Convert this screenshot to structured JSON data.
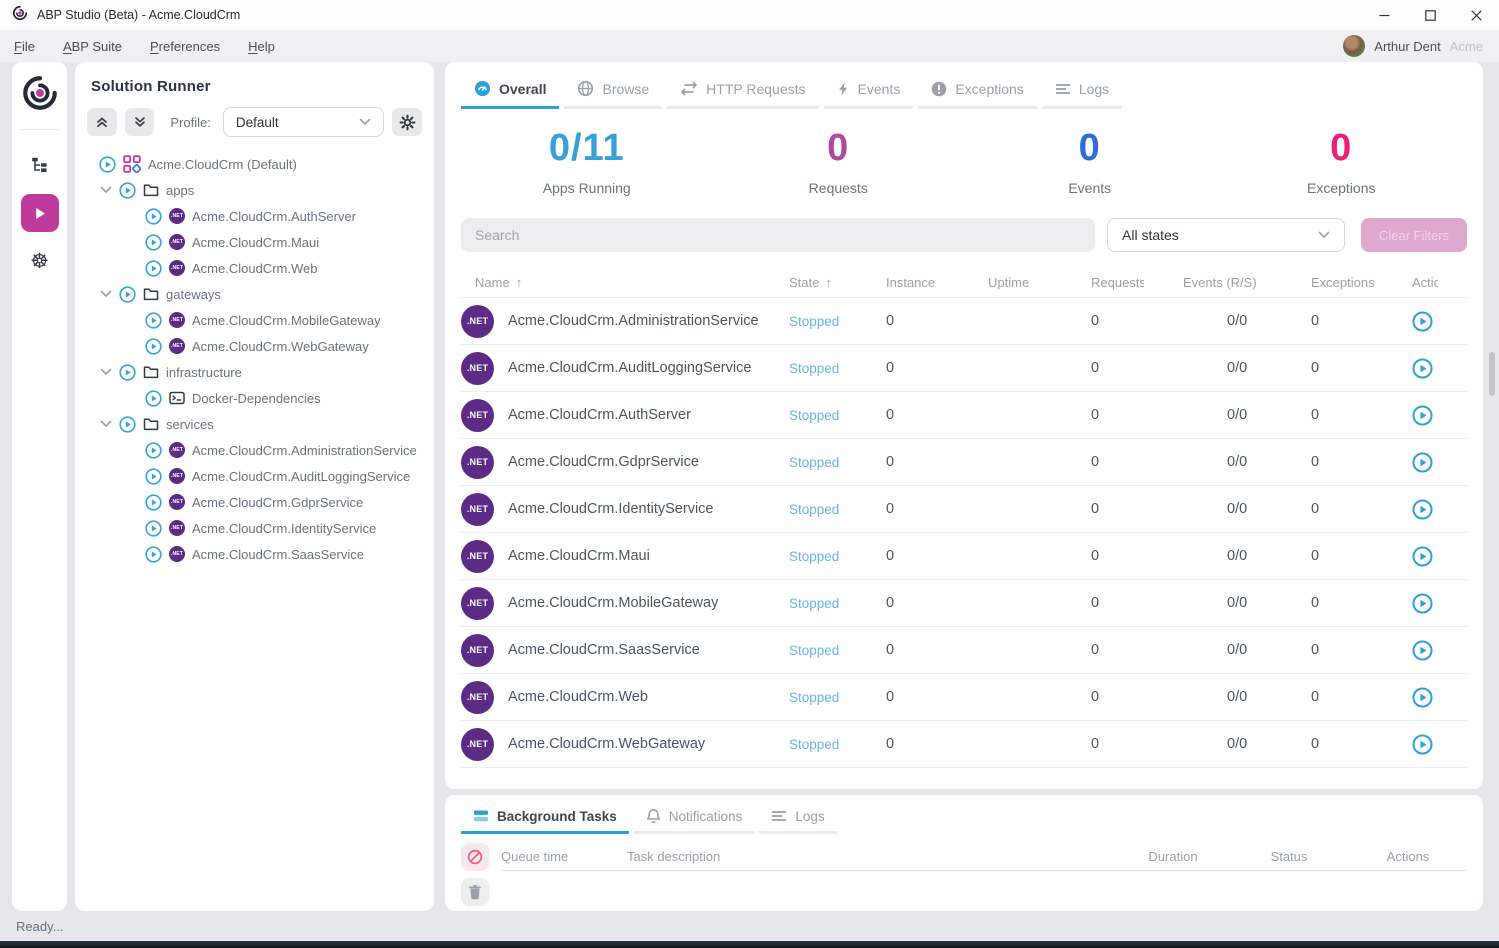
{
  "window": {
    "title": "ABP Studio (Beta) - Acme.CloudCrm"
  },
  "menu": {
    "items": [
      "File",
      "ABP Suite",
      "Preferences",
      "Help"
    ],
    "user_name": "Arthur Dent",
    "user_org": "Acme"
  },
  "rail": {
    "icons": [
      "abp-logo",
      "solution-explorer-icon",
      "solution-runner-play-icon",
      "kubernetes-icon"
    ]
  },
  "solution_runner": {
    "title": "Solution Runner",
    "profile_label": "Profile:",
    "profile_value": "Default",
    "tree": [
      {
        "depth": 0,
        "type": "solution",
        "label": "Acme.CloudCrm (Default)"
      },
      {
        "depth": 1,
        "type": "folder",
        "label": "apps"
      },
      {
        "depth": 2,
        "type": "dotnet",
        "label": "Acme.CloudCrm.AuthServer"
      },
      {
        "depth": 2,
        "type": "dotnet",
        "label": "Acme.CloudCrm.Maui"
      },
      {
        "depth": 2,
        "type": "dotnet",
        "label": "Acme.CloudCrm.Web"
      },
      {
        "depth": 1,
        "type": "folder",
        "label": "gateways"
      },
      {
        "depth": 2,
        "type": "dotnet",
        "label": "Acme.CloudCrm.MobileGateway"
      },
      {
        "depth": 2,
        "type": "dotnet",
        "label": "Acme.CloudCrm.WebGateway"
      },
      {
        "depth": 1,
        "type": "folder",
        "label": "infrastructure"
      },
      {
        "depth": 2,
        "type": "terminal",
        "label": "Docker-Dependencies"
      },
      {
        "depth": 1,
        "type": "folder",
        "label": "services"
      },
      {
        "depth": 2,
        "type": "dotnet",
        "label": "Acme.CloudCrm.AdministrationService"
      },
      {
        "depth": 2,
        "type": "dotnet",
        "label": "Acme.CloudCrm.AuditLoggingService"
      },
      {
        "depth": 2,
        "type": "dotnet",
        "label": "Acme.CloudCrm.GdprService"
      },
      {
        "depth": 2,
        "type": "dotnet",
        "label": "Acme.CloudCrm.IdentityService"
      },
      {
        "depth": 2,
        "type": "dotnet",
        "label": "Acme.CloudCrm.SaasService"
      }
    ]
  },
  "main": {
    "tabs": [
      {
        "label": "Overall",
        "icon": "gauge-icon",
        "active": true
      },
      {
        "label": "Browse",
        "icon": "globe-icon",
        "active": false
      },
      {
        "label": "HTTP Requests",
        "icon": "swap-arrows-icon",
        "active": false
      },
      {
        "label": "Events",
        "icon": "lightning-icon",
        "active": false
      },
      {
        "label": "Exceptions",
        "icon": "exclamation-circle-icon",
        "active": false
      },
      {
        "label": "Logs",
        "icon": "lines-icon",
        "active": false
      }
    ],
    "stats": [
      {
        "value": "0/11",
        "label": "Apps Running",
        "color": "#36a1d9"
      },
      {
        "value": "0",
        "label": "Requests",
        "color": "#ad4a9c"
      },
      {
        "value": "0",
        "label": "Events",
        "color": "#2f6bd9"
      },
      {
        "value": "0",
        "label": "Exceptions",
        "color": "#ec1e78"
      }
    ],
    "search_placeholder": "Search",
    "state_filter_value": "All states",
    "clear_filters_label": "Clear Filters",
    "table": {
      "columns": [
        {
          "label": "Name",
          "sorted": true
        },
        {
          "label": "State",
          "sorted": true
        },
        {
          "label": "Instance"
        },
        {
          "label": "Uptime"
        },
        {
          "label": "Requests"
        },
        {
          "label": "Events (R/S)"
        },
        {
          "label": "Exceptions"
        },
        {
          "label": "Actions"
        }
      ],
      "rows": [
        {
          "name": "Acme.CloudCrm.AdministrationService",
          "state": "Stopped",
          "instance": "0",
          "uptime": "",
          "requests": "0",
          "events": "0/0",
          "exceptions": "0"
        },
        {
          "name": "Acme.CloudCrm.AuditLoggingService",
          "state": "Stopped",
          "instance": "0",
          "uptime": "",
          "requests": "0",
          "events": "0/0",
          "exceptions": "0"
        },
        {
          "name": "Acme.CloudCrm.AuthServer",
          "state": "Stopped",
          "instance": "0",
          "uptime": "",
          "requests": "0",
          "events": "0/0",
          "exceptions": "0"
        },
        {
          "name": "Acme.CloudCrm.GdprService",
          "state": "Stopped",
          "instance": "0",
          "uptime": "",
          "requests": "0",
          "events": "0/0",
          "exceptions": "0"
        },
        {
          "name": "Acme.CloudCrm.IdentityService",
          "state": "Stopped",
          "instance": "0",
          "uptime": "",
          "requests": "0",
          "events": "0/0",
          "exceptions": "0"
        },
        {
          "name": "Acme.CloudCrm.Maui",
          "state": "Stopped",
          "instance": "0",
          "uptime": "",
          "requests": "0",
          "events": "0/0",
          "exceptions": "0"
        },
        {
          "name": "Acme.CloudCrm.MobileGateway",
          "state": "Stopped",
          "instance": "0",
          "uptime": "",
          "requests": "0",
          "events": "0/0",
          "exceptions": "0"
        },
        {
          "name": "Acme.CloudCrm.SaasService",
          "state": "Stopped",
          "instance": "0",
          "uptime": "",
          "requests": "0",
          "events": "0/0",
          "exceptions": "0"
        },
        {
          "name": "Acme.CloudCrm.Web",
          "state": "Stopped",
          "instance": "0",
          "uptime": "",
          "requests": "0",
          "events": "0/0",
          "exceptions": "0"
        },
        {
          "name": "Acme.CloudCrm.WebGateway",
          "state": "Stopped",
          "instance": "0",
          "uptime": "",
          "requests": "0",
          "events": "0/0",
          "exceptions": "0"
        }
      ]
    }
  },
  "bottom": {
    "tabs": [
      {
        "label": "Background Tasks",
        "icon": "stacked-bars-icon",
        "active": true
      },
      {
        "label": "Notifications",
        "icon": "bell-icon",
        "active": false
      },
      {
        "label": "Logs",
        "icon": "lines-icon",
        "active": false
      }
    ],
    "columns": [
      "Queue time",
      "Task description",
      "Duration",
      "Status",
      "Actions"
    ]
  },
  "badges": {
    "dotnet": ".NET"
  },
  "status_bar": {
    "text": "Ready..."
  },
  "colors": {
    "accent_blue": "#2ca0d8",
    "magenta": "#bf3a9b",
    "dotnet_purple": "#5c2b85",
    "stopped_blue": "#68b4e8"
  }
}
